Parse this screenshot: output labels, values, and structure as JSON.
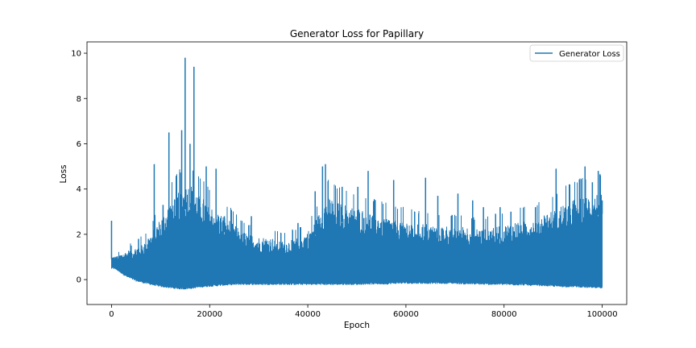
{
  "chart_data": {
    "type": "line",
    "title": "Generator Loss for Papillary",
    "xlabel": "Epoch",
    "ylabel": "Loss",
    "xlim": [
      -5000,
      105000
    ],
    "ylim": [
      -1.1,
      10.5
    ],
    "xticks": [
      0,
      20000,
      40000,
      60000,
      80000,
      100000
    ],
    "xtick_labels": [
      "0",
      "20000",
      "40000",
      "60000",
      "80000",
      "100000"
    ],
    "yticks": [
      0,
      2,
      4,
      6,
      8,
      10
    ],
    "ytick_labels": [
      "0",
      "2",
      "4",
      "6",
      "8",
      "10"
    ],
    "grid": false,
    "legend": {
      "position": "top-right",
      "entries": [
        "Generator Loss"
      ]
    },
    "series": [
      {
        "name": "Generator Loss",
        "color": "#1f77b4",
        "envelope_x": [
          0,
          500,
          1000,
          2000,
          3000,
          4000,
          5000,
          6000,
          7000,
          8000,
          9000,
          10000,
          11000,
          12000,
          13000,
          14000,
          15000,
          16000,
          17000,
          18000,
          19000,
          20000,
          22000,
          24000,
          26000,
          28000,
          30000,
          32000,
          34000,
          36000,
          38000,
          40000,
          42000,
          44000,
          46000,
          48000,
          50000,
          52000,
          54000,
          56000,
          58000,
          60000,
          62000,
          64000,
          66000,
          68000,
          70000,
          72000,
          74000,
          76000,
          78000,
          80000,
          82000,
          84000,
          86000,
          88000,
          90000,
          92000,
          94000,
          96000,
          98000,
          100000
        ],
        "envelope_upper": [
          0.9,
          0.9,
          0.9,
          0.95,
          1.0,
          1.05,
          1.1,
          1.2,
          1.3,
          1.5,
          1.8,
          2.0,
          2.3,
          2.6,
          2.8,
          3.0,
          3.1,
          3.2,
          3.0,
          2.8,
          2.7,
          2.5,
          2.2,
          2.0,
          1.7,
          1.5,
          1.4,
          1.4,
          1.3,
          1.3,
          1.4,
          1.6,
          2.1,
          2.8,
          2.6,
          2.5,
          2.4,
          2.3,
          2.2,
          2.1,
          2.0,
          2.0,
          1.9,
          1.9,
          1.8,
          1.8,
          1.8,
          1.8,
          1.7,
          1.7,
          1.8,
          1.8,
          1.9,
          2.0,
          2.0,
          2.2,
          2.3,
          2.5,
          2.7,
          2.8,
          2.8,
          2.9
        ],
        "envelope_lower": [
          0.5,
          0.5,
          0.45,
          0.3,
          0.15,
          0.05,
          -0.05,
          -0.1,
          -0.15,
          -0.2,
          -0.25,
          -0.3,
          -0.32,
          -0.35,
          -0.38,
          -0.4,
          -0.4,
          -0.38,
          -0.35,
          -0.32,
          -0.3,
          -0.28,
          -0.25,
          -0.22,
          -0.2,
          -0.2,
          -0.2,
          -0.2,
          -0.2,
          -0.2,
          -0.2,
          -0.2,
          -0.2,
          -0.2,
          -0.2,
          -0.2,
          -0.2,
          -0.18,
          -0.18,
          -0.18,
          -0.15,
          -0.15,
          -0.15,
          -0.15,
          -0.15,
          -0.15,
          -0.15,
          -0.18,
          -0.18,
          -0.2,
          -0.2,
          -0.2,
          -0.22,
          -0.22,
          -0.25,
          -0.25,
          -0.28,
          -0.3,
          -0.3,
          -0.32,
          -0.35,
          -0.35
        ],
        "spikes": [
          [
            0,
            2.6
          ],
          [
            3000,
            1.0
          ],
          [
            4000,
            1.5
          ],
          [
            5500,
            1.8
          ],
          [
            7500,
            1.8
          ],
          [
            8700,
            5.1
          ],
          [
            10500,
            3.3
          ],
          [
            11700,
            6.5
          ],
          [
            13200,
            4.1
          ],
          [
            14300,
            6.6
          ],
          [
            15000,
            9.8
          ],
          [
            16000,
            6.0
          ],
          [
            16800,
            9.4
          ],
          [
            19300,
            5.0
          ],
          [
            21300,
            4.9
          ],
          [
            23000,
            2.8
          ],
          [
            28500,
            2.8
          ],
          [
            38000,
            2.5
          ],
          [
            41500,
            3.9
          ],
          [
            43000,
            5.0
          ],
          [
            43600,
            5.1
          ],
          [
            47000,
            4.1
          ],
          [
            50200,
            4.1
          ],
          [
            52300,
            4.8
          ],
          [
            57500,
            4.4
          ],
          [
            64000,
            4.5
          ],
          [
            66500,
            3.7
          ],
          [
            70600,
            3.8
          ],
          [
            73600,
            3.5
          ],
          [
            75800,
            3.2
          ],
          [
            79200,
            3.2
          ],
          [
            81400,
            3.0
          ],
          [
            86400,
            3.2
          ],
          [
            90600,
            4.9
          ],
          [
            96500,
            5.0
          ],
          [
            98000,
            4.3
          ],
          [
            99200,
            4.8
          ],
          [
            100000,
            3.5
          ]
        ]
      }
    ]
  }
}
